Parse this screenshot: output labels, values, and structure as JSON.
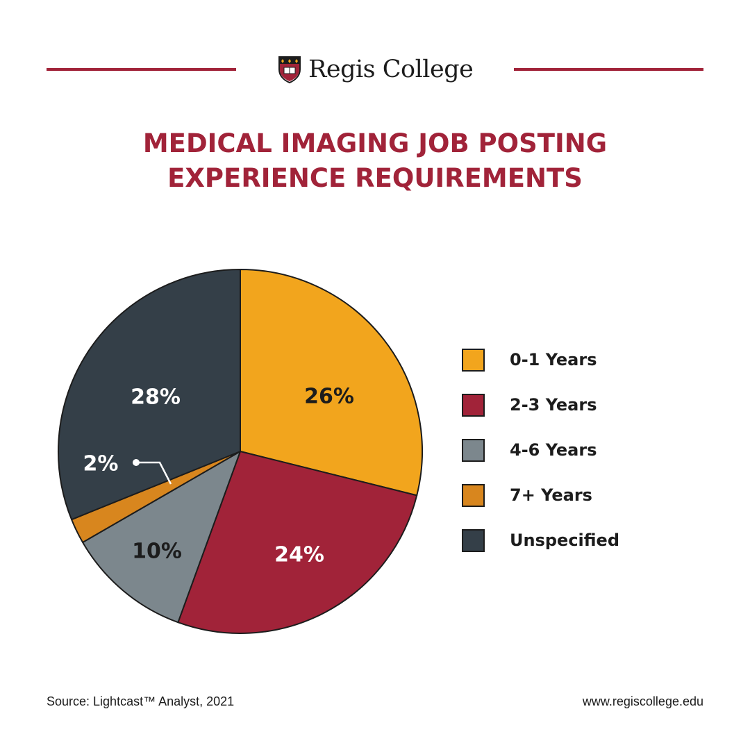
{
  "brand": {
    "name": "Regis College"
  },
  "colors": {
    "brand": "#a12339",
    "0-1 Years": "#f2a51d",
    "2-3 Years": "#a12339",
    "4-6 Years": "#7c878d",
    "7+ Years": "#d8861e",
    "Unspecified": "#343f48",
    "outline": "#1c1c1c"
  },
  "chart_data": {
    "type": "pie",
    "title": "MEDICAL IMAGING JOB POSTING EXPERIENCE REQUIREMENTS",
    "title_lines": [
      "MEDICAL IMAGING JOB POSTING",
      "EXPERIENCE REQUIREMENTS"
    ],
    "categories": [
      "0-1 Years",
      "2-3 Years",
      "4-6 Years",
      "7+ Years",
      "Unspecified"
    ],
    "values": [
      26,
      24,
      10,
      2,
      28
    ],
    "data_labels": [
      "26%",
      "24%",
      "10%",
      "2%",
      "28%"
    ],
    "label_colors": [
      "#1c1c1c",
      "#ffffff",
      "#1c1c1c",
      "#ffffff",
      "#ffffff"
    ],
    "start_angle": "12 o'clock",
    "direction": "clockwise",
    "legend_position": "right"
  },
  "footer": {
    "source": "Source: Lightcast™ Analyst, 2021",
    "url": "www.regiscollege.edu"
  }
}
